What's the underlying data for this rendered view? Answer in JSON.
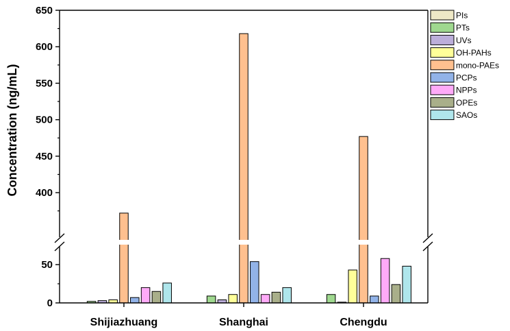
{
  "chart_data": {
    "type": "bar",
    "ylabel": "Concentration (ng/mL)",
    "categories": [
      "Shijiazhuang",
      "Shanghai",
      "Chengdu"
    ],
    "y_axis_break": [
      60,
      340
    ],
    "y_ticks_lower": [
      0,
      50
    ],
    "y_ticks_upper": [
      400,
      450,
      500,
      550,
      600,
      650
    ],
    "ylim": [
      0,
      650
    ],
    "legend_position": "top-right",
    "series": [
      {
        "name": "PIs",
        "color": "#EEE8C6",
        "values": [
          0,
          0,
          0
        ]
      },
      {
        "name": "PTs",
        "color": "#9FD88F",
        "values": [
          2,
          9,
          11
        ]
      },
      {
        "name": "UVs",
        "color": "#BCAEDA",
        "values": [
          3,
          4,
          1
        ]
      },
      {
        "name": "OH-PAHs",
        "color": "#FFFF99",
        "values": [
          4,
          11,
          43
        ]
      },
      {
        "name": "mono-PAEs",
        "color": "#FFC08F",
        "values": [
          372,
          618,
          477
        ]
      },
      {
        "name": "PCPs",
        "color": "#92B3E8",
        "values": [
          7,
          54,
          9
        ]
      },
      {
        "name": "NPPs",
        "color": "#FFAAF8",
        "values": [
          20,
          11,
          58
        ]
      },
      {
        "name": "OPEs",
        "color": "#A9AF8A",
        "values": [
          15,
          14,
          24
        ]
      },
      {
        "name": "SAOs",
        "color": "#AFE6EC",
        "values": [
          26,
          20,
          48
        ]
      }
    ]
  }
}
